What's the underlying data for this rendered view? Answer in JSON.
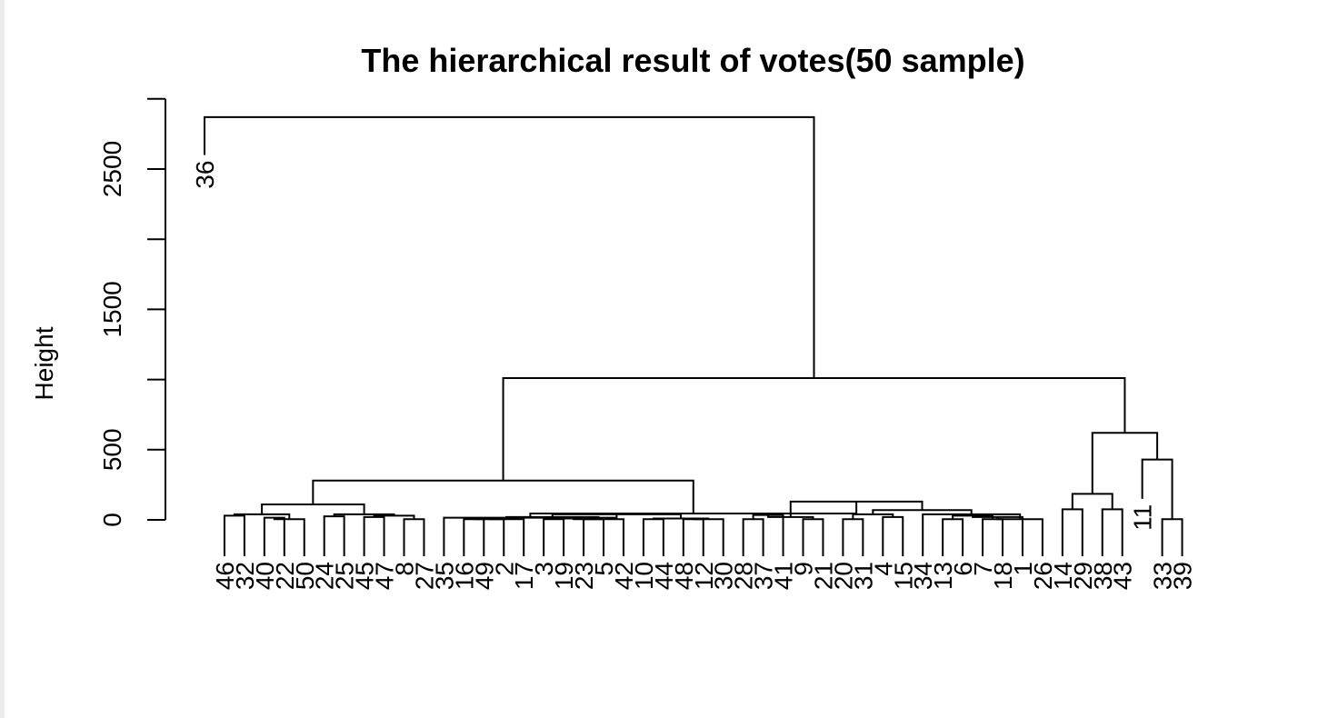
{
  "chart_data": {
    "type": "dendrogram",
    "title": "The hierarchical result of votes(50 sample)",
    "ylabel": "Height",
    "ylim": [
      0,
      3000
    ],
    "yticks": [
      0,
      500,
      1500,
      2500
    ],
    "leaves": [
      {
        "id": "36",
        "h": 2600
      },
      {
        "id": "46"
      },
      {
        "id": "32"
      },
      {
        "id": "40"
      },
      {
        "id": "22"
      },
      {
        "id": "50"
      },
      {
        "id": "24"
      },
      {
        "id": "25"
      },
      {
        "id": "45"
      },
      {
        "id": "47"
      },
      {
        "id": "8"
      },
      {
        "id": "27"
      },
      {
        "id": "35"
      },
      {
        "id": "16"
      },
      {
        "id": "49"
      },
      {
        "id": "2"
      },
      {
        "id": "17"
      },
      {
        "id": "3"
      },
      {
        "id": "19"
      },
      {
        "id": "23"
      },
      {
        "id": "5"
      },
      {
        "id": "42"
      },
      {
        "id": "10"
      },
      {
        "id": "44"
      },
      {
        "id": "48"
      },
      {
        "id": "12"
      },
      {
        "id": "30"
      },
      {
        "id": "28"
      },
      {
        "id": "37"
      },
      {
        "id": "41"
      },
      {
        "id": "9"
      },
      {
        "id": "21"
      },
      {
        "id": "20"
      },
      {
        "id": "31"
      },
      {
        "id": "4"
      },
      {
        "id": "15"
      },
      {
        "id": "34"
      },
      {
        "id": "13"
      },
      {
        "id": "6"
      },
      {
        "id": "7"
      },
      {
        "id": "18"
      },
      {
        "id": "1"
      },
      {
        "id": "26"
      },
      {
        "id": "14"
      },
      {
        "id": "29"
      },
      {
        "id": "38"
      },
      {
        "id": "43"
      },
      {
        "id": "11",
        "h": 150
      },
      {
        "id": "33"
      },
      {
        "id": "39"
      }
    ],
    "merges": [
      {
        "x": [
          "46",
          "32"
        ],
        "h": 30
      },
      {
        "x": [
          "40",
          "22"
        ],
        "h": 15
      },
      {
        "x": [
          "m1",
          "50"
        ],
        "h": 5
      },
      {
        "x": [
          "m0",
          "m2"
        ],
        "h": 40
      },
      {
        "x": [
          "24",
          "25"
        ],
        "h": 25
      },
      {
        "x": [
          "45",
          "47"
        ],
        "h": 20
      },
      {
        "x": [
          "8",
          "27"
        ],
        "h": 5
      },
      {
        "x": [
          "m5",
          "m6"
        ],
        "h": 30
      },
      {
        "x": [
          "m4",
          "m7"
        ],
        "h": 40
      },
      {
        "x": [
          "m3",
          "m8"
        ],
        "h": 110
      },
      {
        "x": [
          "16",
          "49"
        ],
        "h": 5
      },
      {
        "x": [
          "m10",
          "2"
        ],
        "h": 5
      },
      {
        "x": [
          "m11",
          "17"
        ],
        "h": 5
      },
      {
        "x": [
          "3",
          "19"
        ],
        "h": 5
      },
      {
        "x": [
          "23",
          "5"
        ],
        "h": 5
      },
      {
        "x": [
          "m13",
          "m14"
        ],
        "h": 10
      },
      {
        "x": [
          "m15",
          "42"
        ],
        "h": 5
      },
      {
        "x": [
          "m12",
          "m16"
        ],
        "h": 20
      },
      {
        "x": [
          "10",
          "44"
        ],
        "h": 5
      },
      {
        "x": [
          "48",
          "12"
        ],
        "h": 5
      },
      {
        "x": [
          "m19",
          "30"
        ],
        "h": 5
      },
      {
        "x": [
          "m18",
          "m20"
        ],
        "h": 10
      },
      {
        "x": [
          "m17",
          "m21"
        ],
        "h": 40
      },
      {
        "x": [
          "35",
          "m22"
        ],
        "h": 15
      },
      {
        "x": [
          "28",
          "37"
        ],
        "h": 5
      },
      {
        "x": [
          "m24",
          "41"
        ],
        "h": 35
      },
      {
        "x": [
          "9",
          "21"
        ],
        "h": 5
      },
      {
        "x": [
          "m25",
          "m26"
        ],
        "h": 20
      },
      {
        "x": [
          "20",
          "31"
        ],
        "h": 5
      },
      {
        "x": [
          "4",
          "15"
        ],
        "h": 20
      },
      {
        "x": [
          "m28",
          "m29"
        ],
        "h": 40
      },
      {
        "x": [
          "13",
          "6"
        ],
        "h": 5
      },
      {
        "x": [
          "7",
          "18"
        ],
        "h": 5
      },
      {
        "x": [
          "m31",
          "m32"
        ],
        "h": 30
      },
      {
        "x": [
          "m33",
          "1"
        ],
        "h": 20
      },
      {
        "x": [
          "m34",
          "26"
        ],
        "h": 5
      },
      {
        "x": [
          "34",
          "m35"
        ],
        "h": 40
      },
      {
        "x": [
          "m30",
          "m36"
        ],
        "h": 70
      },
      {
        "x": [
          "m27",
          "m37"
        ],
        "h": 130
      },
      {
        "x": [
          "m23",
          "m38"
        ],
        "h": 45
      },
      {
        "x": [
          "m9",
          "m39"
        ],
        "h": 280
      },
      {
        "x": [
          "14",
          "29"
        ],
        "h": 75
      },
      {
        "x": [
          "38",
          "43"
        ],
        "h": 75
      },
      {
        "x": [
          "m41",
          "m42"
        ],
        "h": 185
      },
      {
        "x": [
          "33",
          "39"
        ],
        "h": 5
      },
      {
        "x": [
          "11",
          "m44"
        ],
        "h": 430
      },
      {
        "x": [
          "m43",
          "m45"
        ],
        "h": 620
      },
      {
        "x": [
          "m40",
          "m46"
        ],
        "h": 1010
      },
      {
        "x": [
          "36",
          "m47"
        ],
        "h": 2870
      }
    ]
  }
}
